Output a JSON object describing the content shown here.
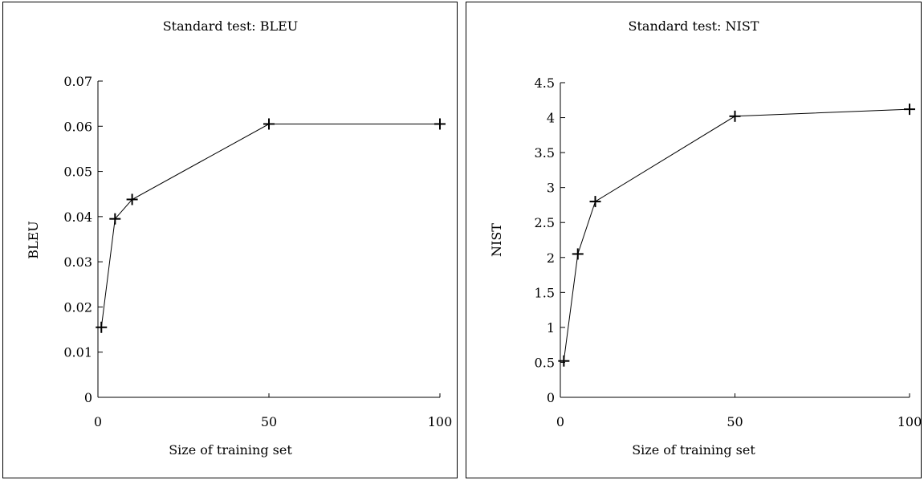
{
  "chart_data": [
    {
      "type": "line",
      "title": "Standard test: BLEU",
      "xlabel": "Size of training set",
      "ylabel": "BLEU",
      "xlim": [
        0,
        100
      ],
      "ylim": [
        0,
        0.07
      ],
      "xticks": [
        0,
        50,
        100
      ],
      "xtick_labels": [
        "0",
        "50",
        "100"
      ],
      "yticks": [
        0,
        0.01,
        0.02,
        0.03,
        0.04,
        0.05,
        0.06,
        0.07
      ],
      "ytick_labels": [
        "0",
        "0.01",
        "0.02",
        "0.03",
        "0.04",
        "0.05",
        "0.06",
        "0.07"
      ],
      "grid": false,
      "series": [
        {
          "x": [
            1,
            5,
            10,
            50,
            100
          ],
          "y": [
            0.0155,
            0.0395,
            0.0438,
            0.0605,
            0.0605
          ]
        }
      ]
    },
    {
      "type": "line",
      "title": "Standard test: NIST",
      "xlabel": "Size of training set",
      "ylabel": "NIST",
      "xlim": [
        0,
        100
      ],
      "ylim": [
        0,
        4.5
      ],
      "xticks": [
        0,
        50,
        100
      ],
      "xtick_labels": [
        "0",
        "50",
        "100"
      ],
      "yticks": [
        0,
        0.5,
        1,
        1.5,
        2,
        2.5,
        3,
        3.5,
        4,
        4.5
      ],
      "ytick_labels": [
        "0",
        "0.5",
        "1",
        "1.5",
        "2",
        "2.5",
        "3",
        "3.5",
        "4",
        "4.5"
      ],
      "grid": false,
      "series": [
        {
          "x": [
            1,
            5,
            10,
            50,
            100
          ],
          "y": [
            0.52,
            2.05,
            2.8,
            4.02,
            4.12
          ]
        }
      ]
    }
  ]
}
